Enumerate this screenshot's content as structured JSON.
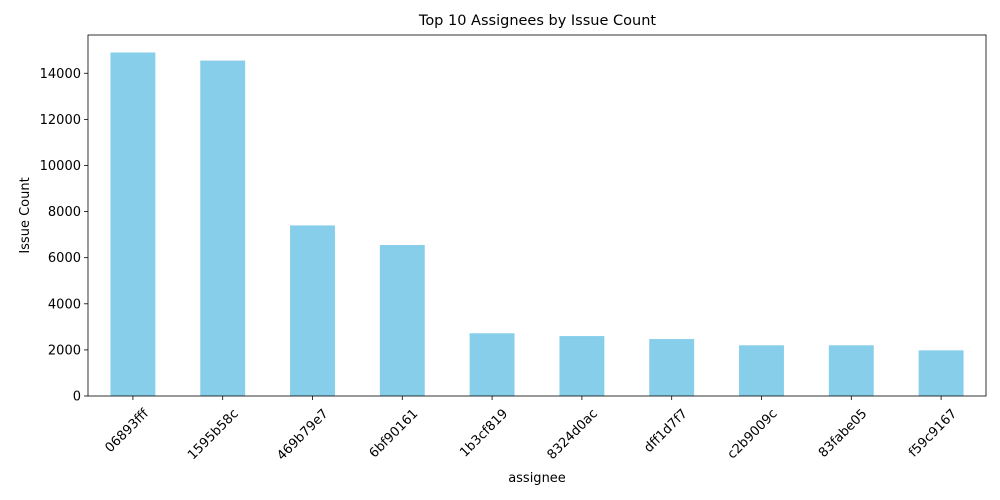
{
  "chart_data": {
    "type": "bar",
    "title": "Top 10 Assignees by Issue Count",
    "xlabel": "assignee",
    "ylabel": "Issue Count",
    "categories": [
      "06893fff",
      "1595b58c",
      "469b79e7",
      "6bf90161",
      "1b3cf819",
      "8324d0ac",
      "dff1d7f7",
      "c2b9009c",
      "83fabe05",
      "f59c9167"
    ],
    "values": [
      14900,
      14550,
      7400,
      6550,
      2720,
      2600,
      2470,
      2200,
      2200,
      1980
    ],
    "ylim": [
      0,
      15660
    ],
    "yticks": [
      0,
      2000,
      4000,
      6000,
      8000,
      10000,
      12000,
      14000
    ],
    "grid": false,
    "legend": "none",
    "bar_color": "#87ceeb"
  }
}
